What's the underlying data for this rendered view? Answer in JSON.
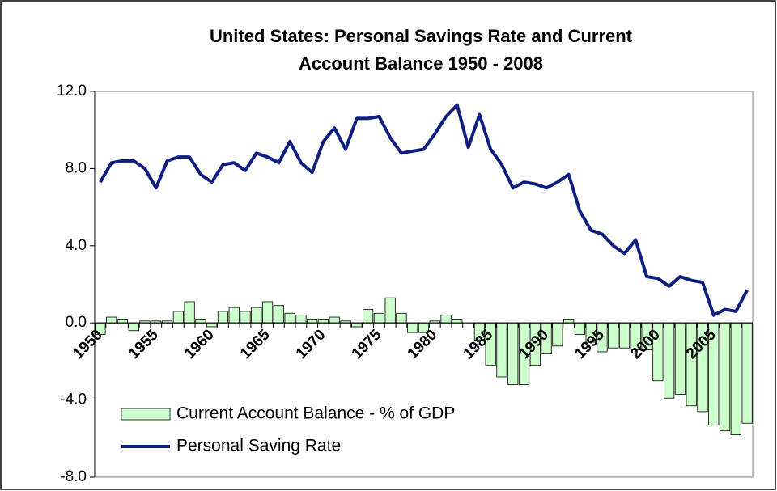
{
  "chart_data": {
    "type": "bar_line",
    "title": [
      "United States: Personal Savings Rate and Current",
      "Account Balance  1950 - 2008"
    ],
    "categories": [
      "1950",
      null,
      null,
      null,
      null,
      "1955",
      null,
      null,
      null,
      null,
      "1960",
      null,
      null,
      null,
      null,
      "1965",
      null,
      null,
      null,
      null,
      "1970",
      null,
      null,
      null,
      null,
      "1975",
      null,
      null,
      null,
      null,
      "1980",
      null,
      null,
      null,
      null,
      "1985",
      null,
      null,
      null,
      null,
      "1990",
      null,
      null,
      null,
      null,
      "1995",
      null,
      null,
      null,
      null,
      "2000",
      null,
      null,
      null,
      null,
      "2005",
      null,
      null,
      null
    ],
    "series": [
      {
        "name": "Current Account Balance - % of GDP",
        "kind": "bar",
        "color": "#ccffcc",
        "values": [
          -0.6,
          0.3,
          0.2,
          -0.4,
          0.1,
          0.1,
          0.1,
          0.6,
          1.1,
          0.2,
          -0.2,
          0.6,
          0.8,
          0.6,
          0.8,
          1.1,
          0.9,
          0.5,
          0.4,
          0.2,
          0.2,
          0.3,
          0.1,
          -0.2,
          0.7,
          0.5,
          1.3,
          0.5,
          -0.5,
          -0.5,
          0.1,
          0.4,
          0.2,
          0.0,
          -0.9,
          -2.2,
          -2.8,
          -3.2,
          -3.2,
          -2.2,
          -1.6,
          -1.2,
          0.2,
          -0.6,
          -1.0,
          -1.5,
          -1.3,
          -1.3,
          -1.4,
          -1.4,
          -3.0,
          -3.9,
          -3.7,
          -4.3,
          -4.6,
          -5.3,
          -5.6,
          -5.8,
          -5.2
        ]
      },
      {
        "name": "Personal Saving Rate",
        "kind": "line",
        "color": "#0f1f7f",
        "values": [
          7.3,
          8.3,
          8.4,
          8.4,
          8.0,
          7.0,
          8.4,
          8.6,
          8.6,
          7.7,
          7.3,
          8.2,
          8.3,
          7.9,
          8.8,
          8.6,
          8.3,
          9.4,
          8.3,
          7.8,
          9.4,
          10.1,
          9.0,
          10.6,
          10.6,
          10.7,
          9.6,
          8.8,
          8.9,
          9.0,
          9.8,
          10.7,
          11.3,
          9.1,
          10.8,
          9.0,
          8.2,
          7.0,
          7.3,
          7.2,
          7.0,
          7.3,
          7.7,
          5.8,
          4.8,
          4.6,
          4.0,
          3.6,
          4.3,
          2.4,
          2.3,
          1.9,
          2.4,
          2.2,
          2.1,
          0.4,
          0.7,
          0.6,
          1.7
        ]
      }
    ],
    "ylim": [
      -8,
      12
    ],
    "yticks": [
      {
        "value": -8,
        "label": "-8.0"
      },
      {
        "value": -4,
        "label": "-4.0"
      },
      {
        "value": 0,
        "label": "0.0"
      },
      {
        "value": 4,
        "label": "4.0"
      },
      {
        "value": 8,
        "label": "8.0"
      },
      {
        "value": 12,
        "label": "12.0"
      }
    ],
    "grid": false
  }
}
